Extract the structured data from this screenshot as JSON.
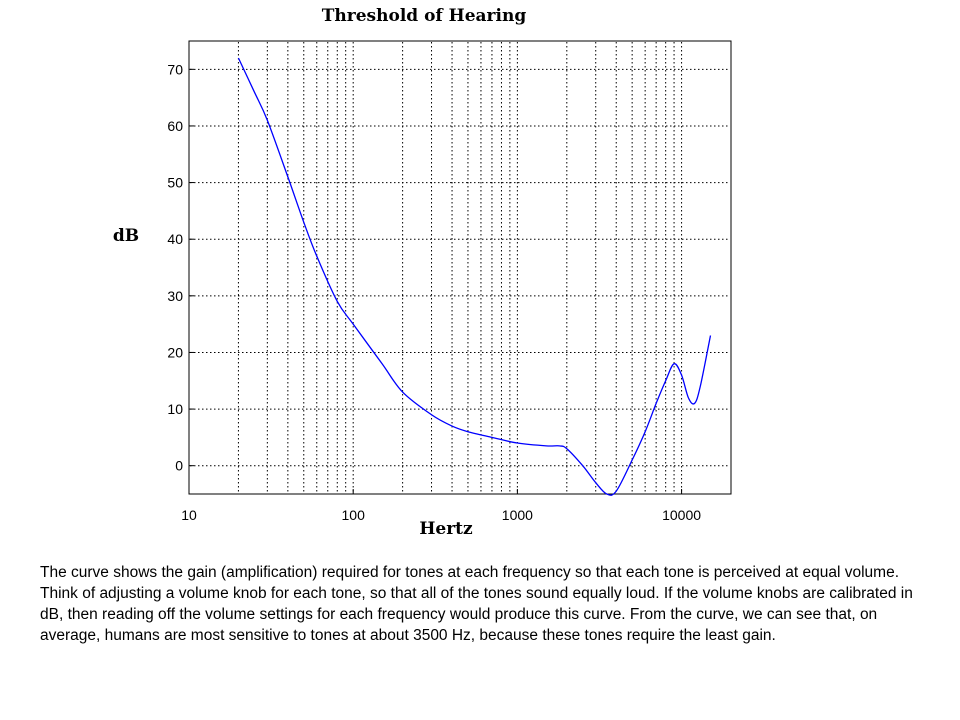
{
  "chart_data": {
    "type": "line",
    "title": "Threshold of Hearing",
    "xlabel": "Hertz",
    "ylabel": "dB",
    "xscale": "log",
    "xlim": [
      10,
      20000
    ],
    "ylim": [
      -5,
      75
    ],
    "xticks": [
      10,
      100,
      1000,
      10000
    ],
    "xtick_labels": [
      "10",
      "100",
      "1000",
      "10000"
    ],
    "yticks": [
      0,
      10,
      20,
      30,
      40,
      50,
      60,
      70
    ],
    "ytick_labels": [
      "0",
      "10",
      "20",
      "30",
      "40",
      "50",
      "60",
      "70"
    ],
    "grid": true,
    "line_color": "#0000ff",
    "series": [
      {
        "x": [
          20,
          25,
          30,
          40,
          50,
          60,
          80,
          100,
          150,
          200,
          300,
          400,
          500,
          700,
          1000,
          1500,
          1800,
          2000,
          2500,
          3000,
          3500,
          4000,
          5000,
          6000,
          7000,
          8000,
          9000,
          10000,
          11000,
          12000,
          13000,
          15000
        ],
        "y": [
          72,
          66,
          61,
          51,
          43,
          37,
          29,
          25,
          18,
          13,
          9,
          7,
          6,
          5,
          4,
          3.5,
          3.5,
          3,
          0,
          -3,
          -5,
          -4.5,
          1,
          6,
          11,
          15,
          18,
          16,
          12,
          11,
          14,
          23
        ]
      }
    ]
  },
  "caption": "The curve shows the gain (amplification) required for tones at each frequency so that each tone is perceived at equal volume. Think of adjusting a volume knob for each tone, so that all of the tones sound equally loud. If the volume knobs are calibrated in dB, then reading off the volume settings for each frequency would produce this curve. From the curve, we can see that, on average, humans are most sensitive to tones at about 3500 Hz, because these tones require the least gain."
}
